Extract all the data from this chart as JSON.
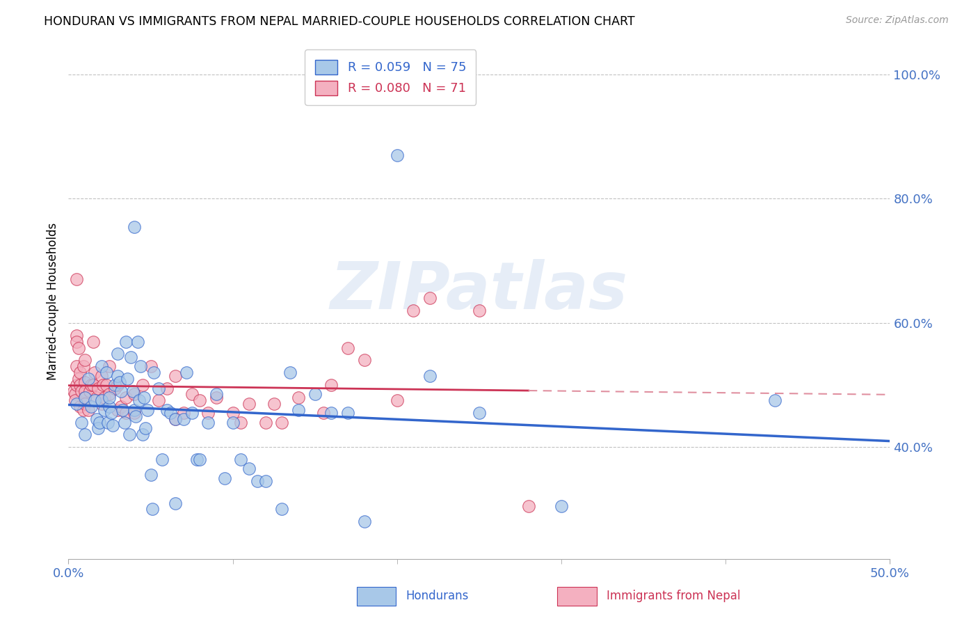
{
  "title": "HONDURAN VS IMMIGRANTS FROM NEPAL MARRIED-COUPLE HOUSEHOLDS CORRELATION CHART",
  "source": "Source: ZipAtlas.com",
  "ylabel": "Married-couple Households",
  "xlim": [
    0.0,
    0.5
  ],
  "ylim": [
    0.22,
    1.05
  ],
  "legend_blue_r": "R = 0.059",
  "legend_blue_n": "N = 75",
  "legend_pink_r": "R = 0.080",
  "legend_pink_n": "N = 71",
  "blue_color": "#a8c8e8",
  "pink_color": "#f4b0c0",
  "trendline_blue_color": "#3366cc",
  "trendline_pink_color": "#cc3355",
  "trendline_pink_dashed_color": "#e090a0",
  "grid_color": "#bbbbbb",
  "axis_label_color": "#4472c4",
  "blue_scatter_x": [
    0.005,
    0.008,
    0.01,
    0.01,
    0.012,
    0.014,
    0.016,
    0.017,
    0.018,
    0.019,
    0.02,
    0.02,
    0.022,
    0.023,
    0.024,
    0.025,
    0.025,
    0.026,
    0.027,
    0.028,
    0.03,
    0.03,
    0.031,
    0.032,
    0.033,
    0.034,
    0.035,
    0.036,
    0.037,
    0.038,
    0.039,
    0.04,
    0.04,
    0.041,
    0.042,
    0.043,
    0.044,
    0.045,
    0.046,
    0.047,
    0.048,
    0.05,
    0.051,
    0.052,
    0.055,
    0.057,
    0.06,
    0.062,
    0.065,
    0.065,
    0.07,
    0.072,
    0.075,
    0.078,
    0.08,
    0.085,
    0.09,
    0.095,
    0.1,
    0.105,
    0.11,
    0.115,
    0.12,
    0.13,
    0.135,
    0.14,
    0.15,
    0.16,
    0.17,
    0.18,
    0.2,
    0.22,
    0.25,
    0.3,
    0.43
  ],
  "blue_scatter_y": [
    0.47,
    0.44,
    0.48,
    0.42,
    0.51,
    0.465,
    0.475,
    0.445,
    0.43,
    0.44,
    0.53,
    0.475,
    0.46,
    0.52,
    0.44,
    0.465,
    0.48,
    0.455,
    0.435,
    0.5,
    0.55,
    0.515,
    0.505,
    0.49,
    0.46,
    0.44,
    0.57,
    0.51,
    0.42,
    0.545,
    0.49,
    0.46,
    0.755,
    0.45,
    0.57,
    0.475,
    0.53,
    0.42,
    0.48,
    0.43,
    0.46,
    0.355,
    0.3,
    0.52,
    0.495,
    0.38,
    0.46,
    0.455,
    0.31,
    0.445,
    0.445,
    0.52,
    0.455,
    0.38,
    0.38,
    0.44,
    0.485,
    0.35,
    0.44,
    0.38,
    0.365,
    0.345,
    0.345,
    0.3,
    0.52,
    0.46,
    0.485,
    0.455,
    0.455,
    0.28,
    0.87,
    0.515,
    0.455,
    0.305,
    0.475
  ],
  "pink_scatter_x": [
    0.003,
    0.004,
    0.004,
    0.005,
    0.005,
    0.005,
    0.005,
    0.005,
    0.006,
    0.006,
    0.007,
    0.007,
    0.007,
    0.008,
    0.009,
    0.009,
    0.01,
    0.01,
    0.01,
    0.01,
    0.01,
    0.012,
    0.013,
    0.014,
    0.015,
    0.015,
    0.016,
    0.017,
    0.018,
    0.02,
    0.02,
    0.021,
    0.022,
    0.023,
    0.025,
    0.025,
    0.028,
    0.03,
    0.03,
    0.032,
    0.035,
    0.035,
    0.04,
    0.04,
    0.045,
    0.05,
    0.055,
    0.06,
    0.065,
    0.065,
    0.07,
    0.075,
    0.08,
    0.085,
    0.09,
    0.1,
    0.105,
    0.11,
    0.12,
    0.125,
    0.13,
    0.14,
    0.155,
    0.16,
    0.17,
    0.18,
    0.2,
    0.21,
    0.22,
    0.25,
    0.28
  ],
  "pink_scatter_y": [
    0.49,
    0.485,
    0.475,
    0.67,
    0.58,
    0.57,
    0.53,
    0.5,
    0.56,
    0.51,
    0.52,
    0.5,
    0.465,
    0.49,
    0.53,
    0.46,
    0.54,
    0.505,
    0.49,
    0.48,
    0.47,
    0.46,
    0.49,
    0.5,
    0.57,
    0.5,
    0.52,
    0.48,
    0.495,
    0.515,
    0.47,
    0.5,
    0.48,
    0.5,
    0.53,
    0.485,
    0.495,
    0.5,
    0.46,
    0.465,
    0.48,
    0.455,
    0.485,
    0.455,
    0.5,
    0.53,
    0.475,
    0.495,
    0.515,
    0.445,
    0.455,
    0.485,
    0.475,
    0.455,
    0.48,
    0.455,
    0.44,
    0.47,
    0.44,
    0.47,
    0.44,
    0.48,
    0.455,
    0.5,
    0.56,
    0.54,
    0.475,
    0.62,
    0.64,
    0.62,
    0.305
  ]
}
